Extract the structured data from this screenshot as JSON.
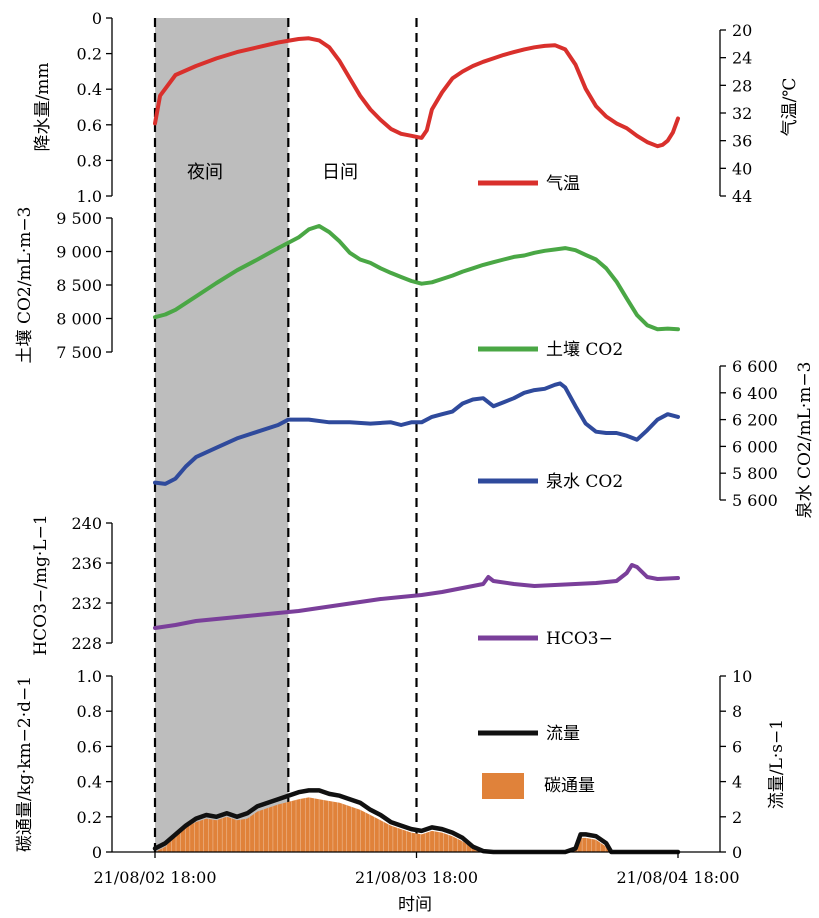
{
  "chart_data": [
    {
      "type": "line",
      "panel": "rainfall-airtemp",
      "y_left": {
        "label": "降水量/mm",
        "ticks": [
          "0",
          "0.2",
          "0.4",
          "0.6",
          "0.8",
          "1.0"
        ],
        "lim": [
          1.0,
          0
        ],
        "inverted": true
      },
      "y_right": {
        "label": "气温/℃",
        "ticks": [
          "20",
          "24",
          "28",
          "32",
          "36",
          "40",
          "44"
        ],
        "lim": [
          44,
          18
        ],
        "inverted": true
      },
      "series": [
        {
          "name": "气温",
          "color": "#d9302c",
          "axis": "right",
          "points": [
            [
              0,
              33.5
            ],
            [
              0.5,
              29.5
            ],
            [
              2,
              26.5
            ],
            [
              4,
              25.2
            ],
            [
              6,
              24.1
            ],
            [
              8,
              23.2
            ],
            [
              10,
              22.5
            ],
            [
              12,
              21.8
            ],
            [
              14,
              21.3
            ],
            [
              15,
              21.2
            ],
            [
              16,
              21.5
            ],
            [
              17,
              22.5
            ],
            [
              18,
              24.5
            ],
            [
              19,
              27
            ],
            [
              20,
              29.5
            ],
            [
              21,
              31.5
            ],
            [
              22,
              33
            ],
            [
              23,
              34.3
            ],
            [
              24,
              35
            ],
            [
              25,
              35.3
            ],
            [
              26,
              35.6
            ],
            [
              26.5,
              34.5
            ],
            [
              27,
              31.5
            ],
            [
              28,
              29
            ],
            [
              29,
              27
            ],
            [
              30,
              26
            ],
            [
              31,
              25.2
            ],
            [
              32,
              24.6
            ],
            [
              33,
              24.1
            ],
            [
              34,
              23.6
            ],
            [
              35,
              23.2
            ],
            [
              36,
              22.8
            ],
            [
              37,
              22.5
            ],
            [
              38,
              22.3
            ],
            [
              39,
              22.2
            ],
            [
              40,
              22.8
            ],
            [
              41,
              25
            ],
            [
              42,
              28.5
            ],
            [
              43,
              31
            ],
            [
              44,
              32.5
            ],
            [
              45,
              33.5
            ],
            [
              46,
              34.2
            ],
            [
              47,
              35.3
            ],
            [
              48,
              36.2
            ],
            [
              49,
              36.8
            ],
            [
              49.5,
              36.6
            ],
            [
              50,
              36
            ],
            [
              50.5,
              34.8
            ],
            [
              51,
              32.8
            ]
          ]
        }
      ],
      "annotations": [
        "夜间",
        "日间"
      ]
    },
    {
      "type": "line",
      "panel": "soil-co2",
      "y_left": {
        "label": "土壤 CO2/mL·m−3",
        "ticks": [
          "7 500",
          "8 000",
          "8 500",
          "9 000",
          "9 500"
        ],
        "lim": [
          7500,
          9500
        ]
      },
      "series": [
        {
          "name": "土壤 CO2",
          "color": "#4aa745",
          "points": [
            [
              0,
              8020
            ],
            [
              1,
              8060
            ],
            [
              2,
              8130
            ],
            [
              4,
              8330
            ],
            [
              6,
              8530
            ],
            [
              8,
              8720
            ],
            [
              10,
              8880
            ],
            [
              12,
              9050
            ],
            [
              14,
              9210
            ],
            [
              15,
              9330
            ],
            [
              16,
              9380
            ],
            [
              17,
              9290
            ],
            [
              18,
              9150
            ],
            [
              19,
              8980
            ],
            [
              20,
              8880
            ],
            [
              21,
              8830
            ],
            [
              22,
              8750
            ],
            [
              23,
              8680
            ],
            [
              24,
              8620
            ],
            [
              25,
              8560
            ],
            [
              26,
              8520
            ],
            [
              27,
              8540
            ],
            [
              28,
              8590
            ],
            [
              29,
              8640
            ],
            [
              30,
              8700
            ],
            [
              31,
              8750
            ],
            [
              32,
              8800
            ],
            [
              33,
              8840
            ],
            [
              34,
              8880
            ],
            [
              35,
              8920
            ],
            [
              36,
              8940
            ],
            [
              37,
              8980
            ],
            [
              38,
              9010
            ],
            [
              39,
              9030
            ],
            [
              40,
              9050
            ],
            [
              41,
              9020
            ],
            [
              42,
              8950
            ],
            [
              43,
              8880
            ],
            [
              44,
              8750
            ],
            [
              45,
              8550
            ],
            [
              46,
              8300
            ],
            [
              47,
              8050
            ],
            [
              48,
              7900
            ],
            [
              49,
              7840
            ],
            [
              50,
              7850
            ],
            [
              51,
              7840
            ]
          ]
        }
      ]
    },
    {
      "type": "line",
      "panel": "spring-co2",
      "y_right": {
        "label": "泉水 CO2/mL·m−3",
        "ticks": [
          "5 600",
          "5 800",
          "6 000",
          "6 200",
          "6 400",
          "6 600"
        ],
        "lim": [
          5600,
          6600
        ]
      },
      "series": [
        {
          "name": "泉水 CO2",
          "color": "#2f4a9c",
          "points": [
            [
              0,
              5730
            ],
            [
              1,
              5720
            ],
            [
              2,
              5760
            ],
            [
              3,
              5850
            ],
            [
              4,
              5920
            ],
            [
              6,
              5990
            ],
            [
              8,
              6060
            ],
            [
              10,
              6110
            ],
            [
              12,
              6160
            ],
            [
              13,
              6200
            ],
            [
              15,
              6200
            ],
            [
              17,
              6180
            ],
            [
              19,
              6180
            ],
            [
              21,
              6170
            ],
            [
              23,
              6180
            ],
            [
              24,
              6160
            ],
            [
              25,
              6180
            ],
            [
              26,
              6180
            ],
            [
              27,
              6220
            ],
            [
              28,
              6240
            ],
            [
              29,
              6260
            ],
            [
              30,
              6320
            ],
            [
              31,
              6350
            ],
            [
              32,
              6360
            ],
            [
              33,
              6300
            ],
            [
              34,
              6330
            ],
            [
              35,
              6360
            ],
            [
              36,
              6400
            ],
            [
              37,
              6420
            ],
            [
              38,
              6430
            ],
            [
              39,
              6460
            ],
            [
              39.5,
              6470
            ],
            [
              40,
              6440
            ],
            [
              41,
              6300
            ],
            [
              42,
              6170
            ],
            [
              43,
              6110
            ],
            [
              44,
              6100
            ],
            [
              45,
              6100
            ],
            [
              46,
              6080
            ],
            [
              47,
              6050
            ],
            [
              48,
              6120
            ],
            [
              49,
              6200
            ],
            [
              50,
              6240
            ],
            [
              51,
              6220
            ]
          ]
        }
      ]
    },
    {
      "type": "line",
      "panel": "hco3",
      "y_left": {
        "label": "HCO3−/mg·L−1",
        "ticks": [
          "228",
          "232",
          "236",
          "240"
        ],
        "lim": [
          228,
          240
        ]
      },
      "series": [
        {
          "name": "HCO3−",
          "color": "#7a3f9a",
          "points": [
            [
              0,
              229.5
            ],
            [
              2,
              229.8
            ],
            [
              4,
              230.2
            ],
            [
              6,
              230.4
            ],
            [
              8,
              230.6
            ],
            [
              10,
              230.8
            ],
            [
              12,
              231
            ],
            [
              14,
              231.2
            ],
            [
              16,
              231.5
            ],
            [
              18,
              231.8
            ],
            [
              20,
              232.1
            ],
            [
              22,
              232.4
            ],
            [
              24,
              232.6
            ],
            [
              26,
              232.8
            ],
            [
              28,
              233.1
            ],
            [
              30,
              233.5
            ],
            [
              32,
              233.9
            ],
            [
              32.5,
              234.6
            ],
            [
              33,
              234.2
            ],
            [
              35,
              233.9
            ],
            [
              37,
              233.7
            ],
            [
              39,
              233.8
            ],
            [
              41,
              233.9
            ],
            [
              43,
              234
            ],
            [
              45,
              234.2
            ],
            [
              46,
              235
            ],
            [
              46.5,
              235.8
            ],
            [
              47,
              235.6
            ],
            [
              48,
              234.6
            ],
            [
              49,
              234.4
            ],
            [
              51,
              234.5
            ]
          ]
        }
      ]
    },
    {
      "type": "area",
      "panel": "flux-discharge",
      "y_left": {
        "label": "碳通量/kg·km−2·d−1",
        "ticks": [
          "0",
          "0.2",
          "0.4",
          "0.6",
          "0.8",
          "1.0"
        ],
        "lim": [
          0,
          1.0
        ]
      },
      "y_right": {
        "label": "流量/L·s−1",
        "ticks": [
          "0",
          "2",
          "4",
          "6",
          "8",
          "10"
        ],
        "lim": [
          0,
          10
        ]
      },
      "x": {
        "label": "时间",
        "ticks": [
          "21/08/02 18:00",
          "21/08/03 18:00",
          "21/08/04 18:00"
        ]
      },
      "series": [
        {
          "name": "流量",
          "color": "#111111",
          "axis": "right",
          "points": [
            [
              0,
              0.2
            ],
            [
              1,
              0.5
            ],
            [
              2,
              1.0
            ],
            [
              3,
              1.5
            ],
            [
              4,
              1.9
            ],
            [
              5,
              2.1
            ],
            [
              6,
              2.0
            ],
            [
              7,
              2.2
            ],
            [
              8,
              2.0
            ],
            [
              9,
              2.2
            ],
            [
              10,
              2.6
            ],
            [
              12,
              3.0
            ],
            [
              14,
              3.4
            ],
            [
              15,
              3.5
            ],
            [
              16,
              3.5
            ],
            [
              17,
              3.3
            ],
            [
              18,
              3.2
            ],
            [
              19,
              3.0
            ],
            [
              20,
              2.8
            ],
            [
              21,
              2.4
            ],
            [
              22,
              2.1
            ],
            [
              23,
              1.7
            ],
            [
              24,
              1.5
            ],
            [
              25,
              1.3
            ],
            [
              26,
              1.2
            ],
            [
              27,
              1.4
            ],
            [
              28,
              1.3
            ],
            [
              29,
              1.1
            ],
            [
              30,
              0.8
            ],
            [
              31,
              0.3
            ],
            [
              32,
              0.05
            ],
            [
              33,
              0
            ],
            [
              40,
              0
            ],
            [
              41,
              0.2
            ],
            [
              41.5,
              1.0
            ],
            [
              42,
              1.0
            ],
            [
              43,
              0.9
            ],
            [
              44,
              0.5
            ],
            [
              44.5,
              0
            ],
            [
              51,
              0
            ]
          ]
        },
        {
          "name": "碳通量",
          "color": "#e0823a",
          "axis": "left",
          "points": [
            [
              0,
              0
            ],
            [
              1,
              0.03
            ],
            [
              2,
              0.09
            ],
            [
              3,
              0.14
            ],
            [
              4,
              0.17
            ],
            [
              5,
              0.19
            ],
            [
              6,
              0.18
            ],
            [
              7,
              0.2
            ],
            [
              8,
              0.18
            ],
            [
              9,
              0.19
            ],
            [
              10,
              0.23
            ],
            [
              12,
              0.27
            ],
            [
              14,
              0.3
            ],
            [
              15,
              0.31
            ],
            [
              16,
              0.3
            ],
            [
              17,
              0.29
            ],
            [
              18,
              0.28
            ],
            [
              19,
              0.26
            ],
            [
              20,
              0.24
            ],
            [
              21,
              0.21
            ],
            [
              22,
              0.18
            ],
            [
              23,
              0.15
            ],
            [
              24,
              0.13
            ],
            [
              25,
              0.11
            ],
            [
              26,
              0.1
            ],
            [
              27,
              0.12
            ],
            [
              28,
              0.11
            ],
            [
              29,
              0.09
            ],
            [
              30,
              0.06
            ],
            [
              31,
              0.02
            ],
            [
              32,
              0
            ],
            [
              40,
              0
            ],
            [
              41,
              0.02
            ],
            [
              41.5,
              0.08
            ],
            [
              42,
              0.08
            ],
            [
              43,
              0.07
            ],
            [
              44,
              0.03
            ],
            [
              44.5,
              0
            ],
            [
              51,
              0
            ]
          ]
        }
      ]
    }
  ],
  "x_domain": [
    0,
    51
  ],
  "x_tick_positions": [
    0,
    25.5,
    51
  ],
  "shade_range": [
    0,
    13
  ],
  "dashed_lines": [
    0,
    13,
    25.5
  ]
}
